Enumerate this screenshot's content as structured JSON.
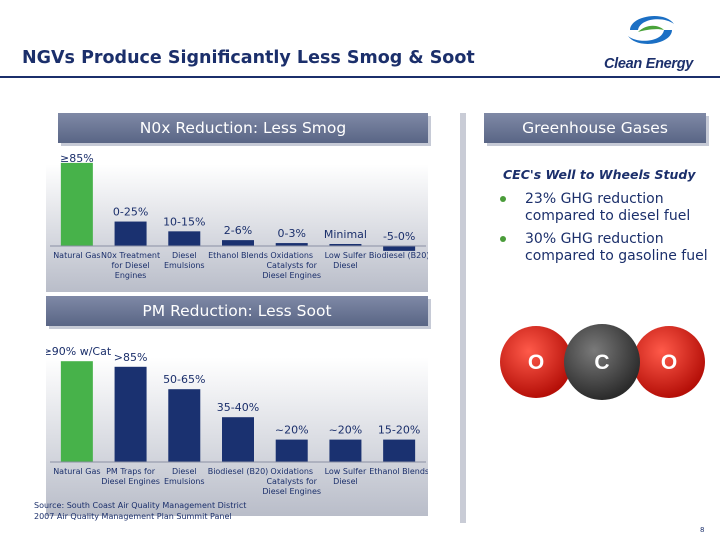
{
  "title": "NGVs Produce Significantly Less Smog & Soot",
  "logo": {
    "text": "Clean Energy",
    "colors": [
      "#1b6fc4",
      "#4aa33a"
    ]
  },
  "nox_section": {
    "banner": "N0x Reduction: Less Smog"
  },
  "pm_section": {
    "banner": "PM Reduction: Less Soot"
  },
  "ghg_section": {
    "banner": "Greenhouse Gases",
    "study_title": "CEC's Well to Wheels Study",
    "bullets": [
      "23% GHG reduction compared to diesel fuel",
      "30% GHG reduction compared to gasoline fuel"
    ],
    "molecule": [
      "O",
      "C",
      "O"
    ]
  },
  "colors": {
    "green_bar": "#47b24a",
    "navy_bar": "#1a3170",
    "banner": "#6b7594"
  },
  "chart_data": [
    {
      "type": "bar",
      "title": "N0x Reduction: Less Smog",
      "categories": [
        "Natural Gas",
        "N0x Treatment for Diesel Engines",
        "Diesel Emulsions",
        "Ethanol Blends",
        "Oxidations Catalysts for Diesel Engines",
        "Low Sulfer Diesel",
        "Biodiesel (B20)"
      ],
      "values": [
        85,
        25,
        15,
        6,
        3,
        1,
        -5
      ],
      "data_labels": [
        "≥85%",
        "0-25%",
        "10-15%",
        "2-6%",
        "0-3%",
        "Minimal",
        "-5-0%"
      ],
      "ylim": [
        -10,
        90
      ],
      "grid": false,
      "bar_colors": [
        "#47b24a",
        "#1a3170",
        "#1a3170",
        "#1a3170",
        "#1a3170",
        "#1a3170",
        "#1a3170"
      ]
    },
    {
      "type": "bar",
      "title": "PM Reduction: Less Soot",
      "categories": [
        "Natural Gas",
        "PM Traps for Diesel Engines",
        "Diesel Emulsions",
        "Biodiesel (B20)",
        "Oxidations Catalysts for Diesel Engines",
        "Low Sulfer Diesel",
        "Ethanol Blends"
      ],
      "values": [
        90,
        85,
        65,
        40,
        20,
        20,
        20
      ],
      "data_labels": [
        "≥90% w/Cat",
        ">85%",
        "50-65%",
        "35-40%",
        "~20%",
        "~20%",
        "15-20%"
      ],
      "ylim": [
        0,
        100
      ],
      "grid": false,
      "bar_colors": [
        "#47b24a",
        "#1a3170",
        "#1a3170",
        "#1a3170",
        "#1a3170",
        "#1a3170",
        "#1a3170"
      ]
    }
  ],
  "source_lines": [
    "Source: South Coast Air Quality Management District",
    "2007 Air Quality Management Plan Summit Panel"
  ],
  "page_number": "8"
}
